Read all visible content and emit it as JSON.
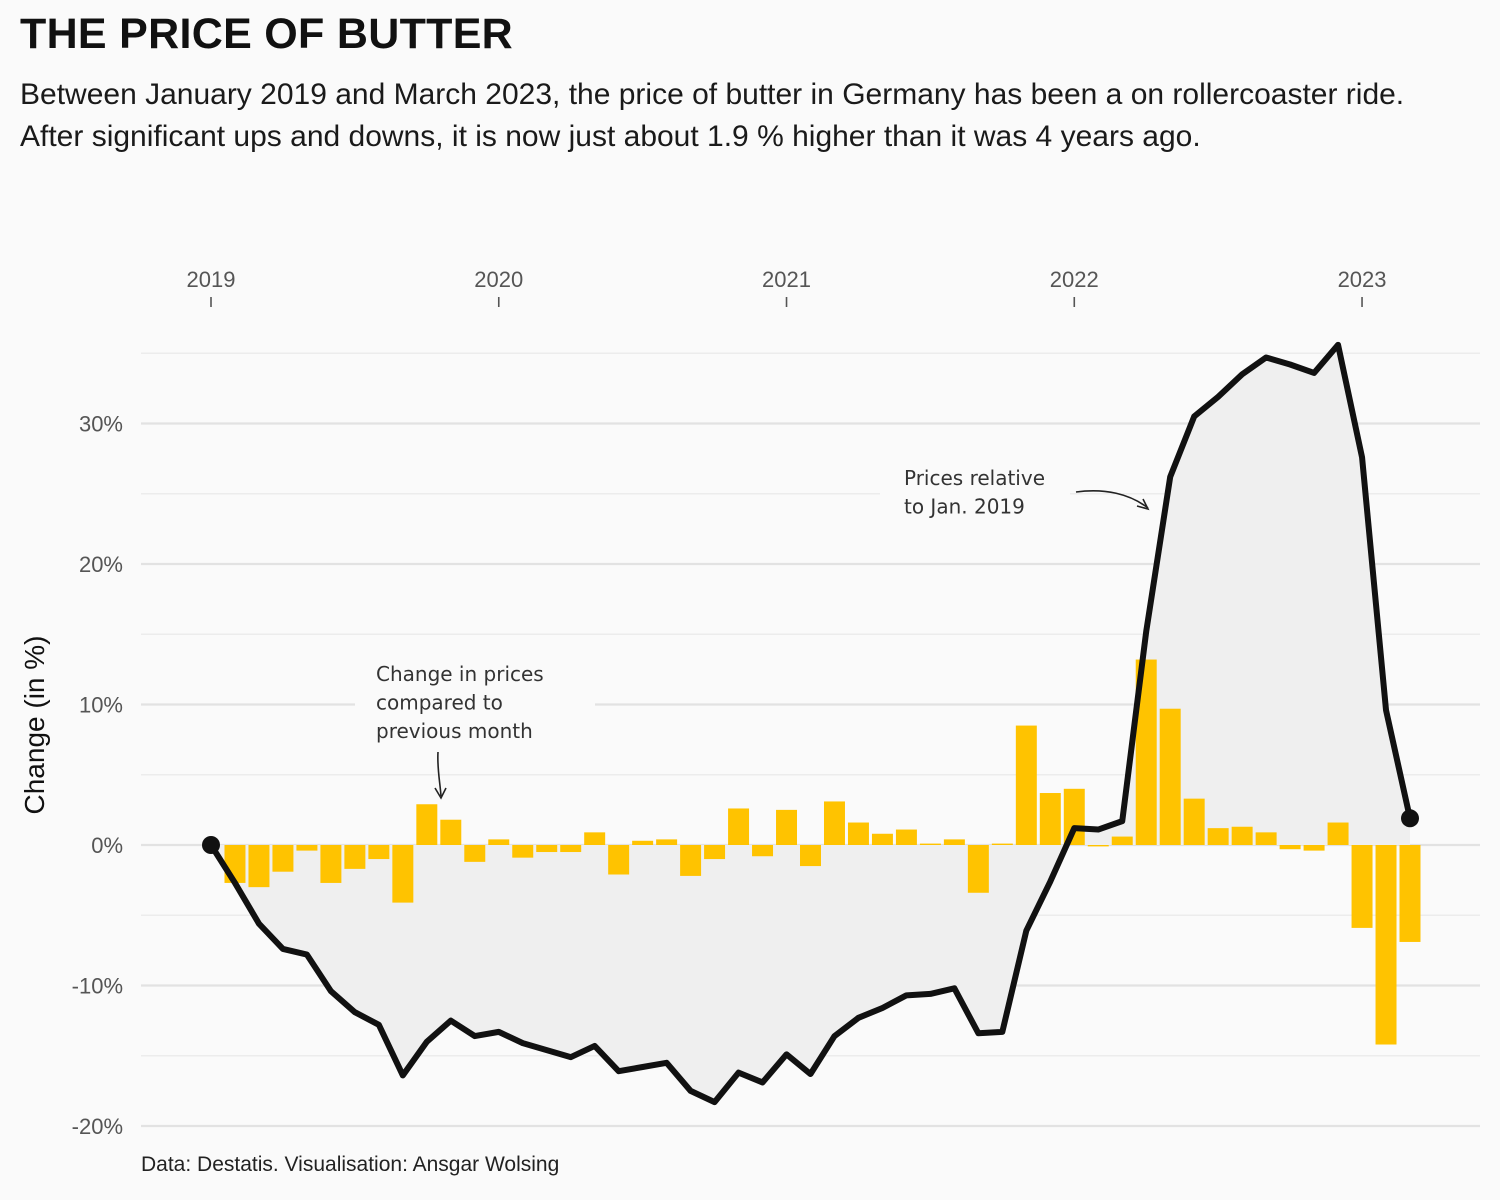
{
  "title": "THE PRICE OF BUTTER",
  "subtitle": "Between January 2019 and March 2023, the price of butter in Germany has been a on rollercoaster ride. After significant ups and downs, it is now just about 1.9 % higher than it was 4 years ago.",
  "caption": "Data: Destatis. Visualisation: Ansgar Wolsing",
  "chart_data": {
    "type": "bar",
    "ylabel": "Change (in %)",
    "x_axis": {
      "position": "top",
      "ticks": [
        "2019",
        "2020",
        "2021",
        "2022",
        "2023"
      ]
    },
    "y_axis": {
      "ticks": [
        30,
        20,
        10,
        0,
        -10,
        -20
      ],
      "tick_labels": [
        "30%",
        "20%",
        "10%",
        "0%",
        "-10%",
        "-20%"
      ],
      "range": [
        -20.5,
        35.5
      ]
    },
    "grid": true,
    "start": {
      "year": 2019,
      "month": 1
    },
    "colors": {
      "bars": "#FFC300",
      "line": "#111111",
      "area": "#efefef"
    },
    "annotations": [
      {
        "lines": [
          "Change in prices",
          "compared to",
          "previous month"
        ],
        "target": "2019-11 bar"
      },
      {
        "lines": [
          "Prices relative",
          "to Jan. 2019"
        ],
        "target": "2022-04 line"
      }
    ],
    "series": [
      {
        "name": "Change in prices compared to previous month",
        "type": "bar",
        "values": [
          -2.7,
          -3.0,
          -1.9,
          -0.4,
          -2.7,
          -1.7,
          -1.0,
          -4.1,
          2.9,
          1.8,
          -1.2,
          0.4,
          -0.9,
          -0.5,
          -0.5,
          0.9,
          -2.1,
          0.3,
          0.4,
          -2.2,
          -1.0,
          2.6,
          -0.8,
          2.5,
          -1.5,
          3.1,
          1.6,
          0.8,
          1.1,
          0.1,
          0.4,
          -3.4,
          0.1,
          8.5,
          3.7,
          4.0,
          -0.1,
          0.6,
          13.2,
          9.7,
          3.3,
          1.2,
          1.3,
          0.9,
          -0.3,
          -0.4,
          1.6,
          -5.9,
          -14.2,
          -6.9
        ]
      },
      {
        "name": "Prices relative to Jan. 2019",
        "type": "line",
        "values": [
          0,
          -2.7,
          -5.6,
          -7.4,
          -7.8,
          -10.4,
          -11.9,
          -12.8,
          -16.4,
          -14.0,
          -12.5,
          -13.6,
          -13.3,
          -14.1,
          -14.6,
          -15.1,
          -14.3,
          -16.1,
          -15.8,
          -15.5,
          -17.5,
          -18.3,
          -16.2,
          -16.9,
          -14.9,
          -16.3,
          -13.6,
          -12.3,
          -11.6,
          -10.7,
          -10.6,
          -10.2,
          -13.4,
          -13.3,
          -6.1,
          -2.6,
          1.2,
          1.1,
          1.7,
          15.2,
          26.2,
          30.5,
          31.9,
          33.5,
          34.7,
          34.2,
          33.6,
          35.6,
          27.6,
          9.6,
          1.9
        ]
      }
    ]
  }
}
